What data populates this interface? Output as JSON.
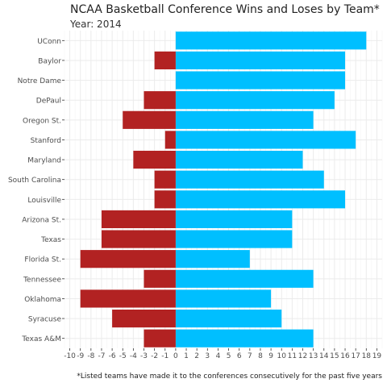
{
  "chart_data": {
    "type": "bar",
    "orientation": "horizontal",
    "title": "NCAA Basketball Conference Wins and Loses by Team*",
    "subtitle": "Year: 2014",
    "caption": "*Listed teams have made it to the conferences consecutively for the past five years",
    "xlabel": "",
    "ylabel": "",
    "xlim": [
      -10,
      19
    ],
    "x_ticks": [
      -10,
      -9,
      -8,
      -7,
      -6,
      -5,
      -4,
      -3,
      -2,
      -1,
      0,
      1,
      2,
      3,
      4,
      5,
      6,
      7,
      8,
      9,
      10,
      11,
      12,
      13,
      14,
      15,
      16,
      17,
      18,
      19
    ],
    "grid": true,
    "categories": [
      "UConn",
      "Baylor",
      "Notre Dame",
      "DePaul",
      "Oregon St.",
      "Stanford",
      "Maryland",
      "South Carolina",
      "Louisville",
      "Arizona St.",
      "Texas",
      "Florida St.",
      "Tennessee",
      "Oklahoma",
      "Syracuse",
      "Texas A&M"
    ],
    "series": [
      {
        "values": [
          18,
          16,
          16,
          15,
          13,
          17,
          12,
          14,
          16,
          11,
          11,
          7,
          13,
          9,
          10,
          13
        ],
        "color": "#00bfff"
      },
      {
        "values": [
          0,
          -2,
          0,
          -3,
          -5,
          -1,
          -4,
          -2,
          -2,
          -7,
          -7,
          -9,
          -3,
          -9,
          -6,
          -3
        ],
        "color": "#b22222"
      }
    ]
  }
}
